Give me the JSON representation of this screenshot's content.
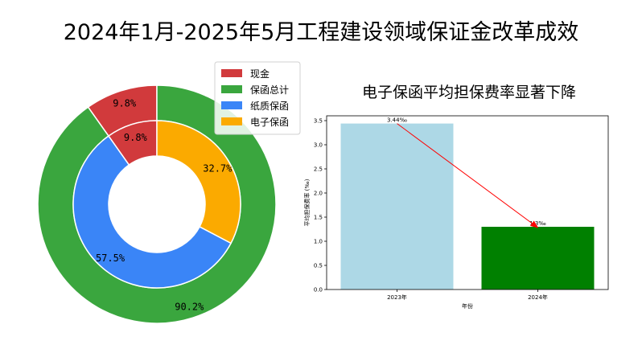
{
  "title": "2024年1月-2025年5月工程建设领域保证金改革成效",
  "chart_data": [
    {
      "type": "pie",
      "legend": {
        "placement": "top-right",
        "entries": [
          {
            "label": "现金",
            "color": "#d13a3c"
          },
          {
            "label": "保函总计",
            "color": "#3aa63e"
          },
          {
            "label": "纸质保函",
            "color": "#3a85f7"
          },
          {
            "label": "电子保函",
            "color": "#fbaa00"
          }
        ]
      },
      "outer_ring": [
        {
          "label": "现金",
          "value": 9.8,
          "text": "9.8%",
          "color": "#d13a3c"
        },
        {
          "label": "保函总计",
          "value": 90.2,
          "text": "90.2%",
          "color": "#3aa63e"
        }
      ],
      "inner_ring": [
        {
          "label": "现金",
          "value": 9.8,
          "text": "9.8%",
          "color": "#d13a3c"
        },
        {
          "label": "纸质保函",
          "value": 57.5,
          "text": "57.5%",
          "color": "#3a85f7"
        },
        {
          "label": "电子保函",
          "value": 32.7,
          "text": "32.7%",
          "color": "#fbaa00"
        }
      ]
    },
    {
      "type": "bar",
      "title": "电子保函平均担保费率显著下降",
      "categories": [
        "2023年",
        "2024年"
      ],
      "values": [
        3.44,
        1.3
      ],
      "value_labels": [
        "3.44‰",
        "1.3‰"
      ],
      "colors": [
        "#add8e6",
        "#008000"
      ],
      "xlabel": "年份",
      "ylabel": "平均担保费率 (‰)",
      "ylim": [
        0,
        3.6
      ],
      "yticks": [
        0.0,
        0.5,
        1.0,
        1.5,
        2.0,
        2.5,
        3.0,
        3.5
      ],
      "ytick_labels": [
        "0.0",
        "0.5",
        "1.0",
        "1.5",
        "2.0",
        "2.5",
        "3.0",
        "3.5"
      ],
      "grid": false,
      "arrow": {
        "from": "3.44‰",
        "to": "1.3‰",
        "color": "#ff0000"
      }
    }
  ]
}
